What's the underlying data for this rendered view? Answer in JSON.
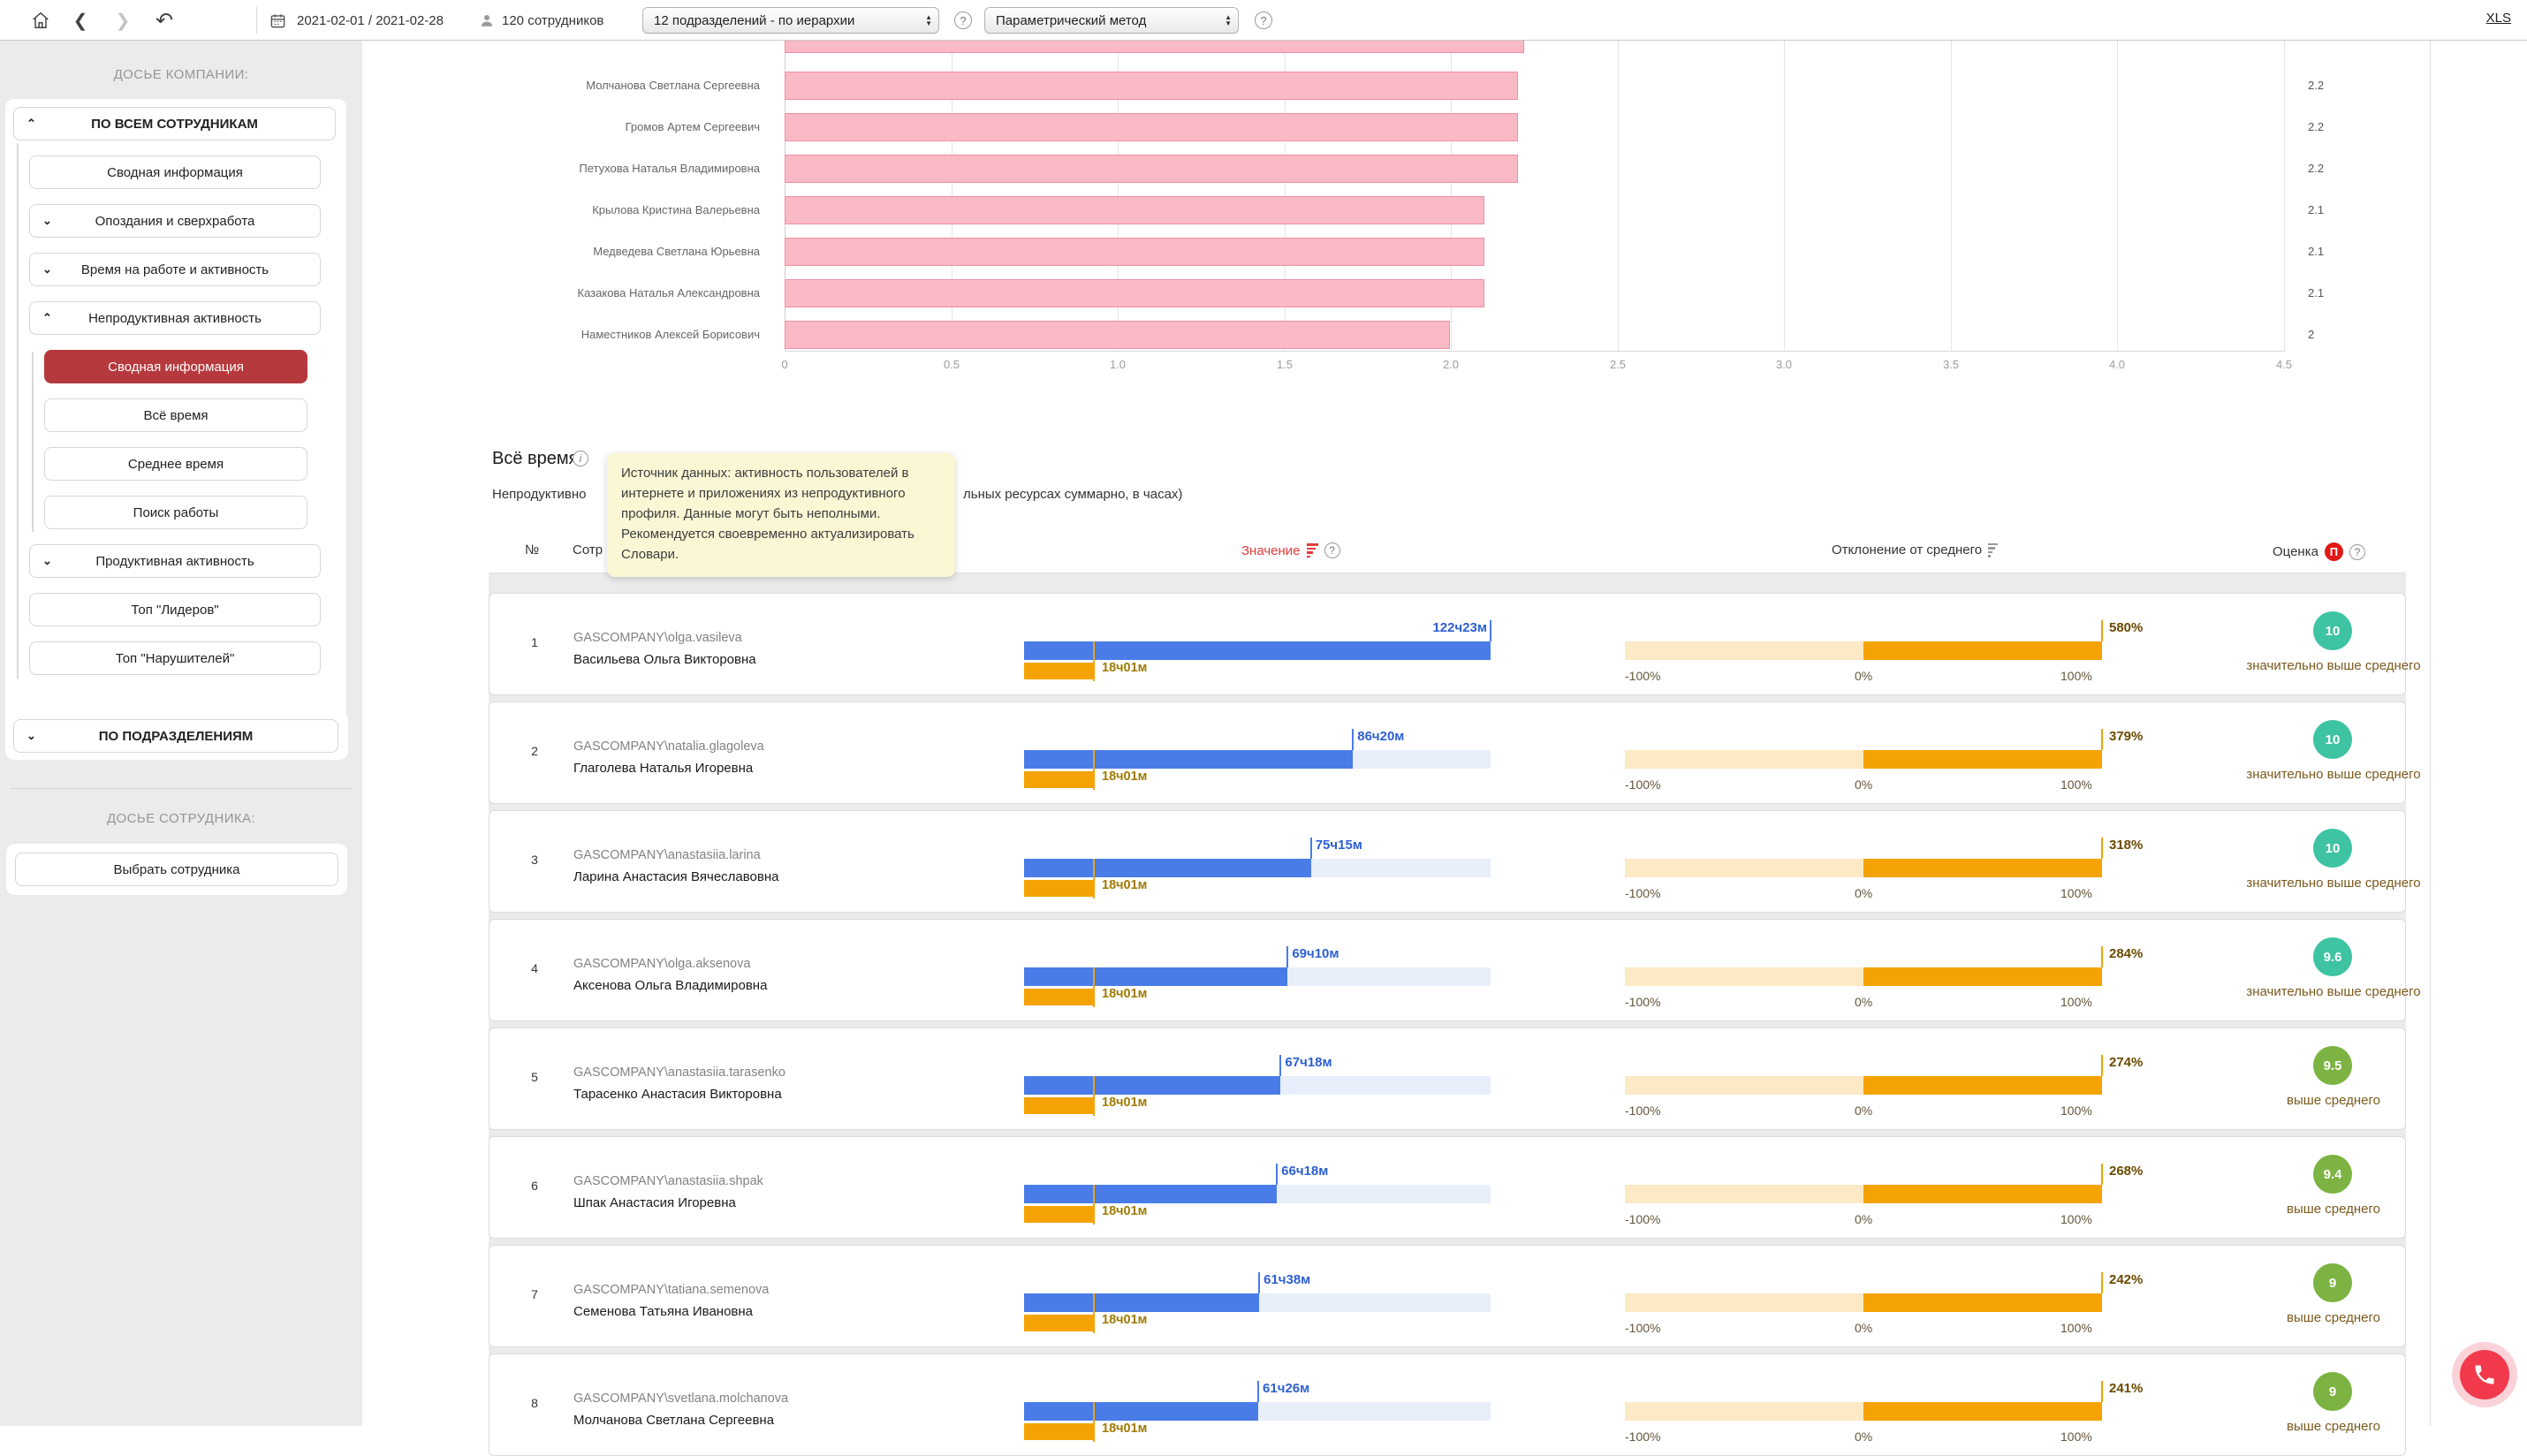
{
  "toolbar": {
    "date_range": "2021-02-01 / 2021-02-28",
    "employees_count": "120 сотрудников",
    "department_select": "12 подразделений - по иерархии",
    "method_select": "Параметрический метод",
    "xls_label": "XLS",
    "help_icon": "?"
  },
  "sidebar": {
    "company_header": "ДОСЬЕ КОМПАНИИ:",
    "employee_header": "ДОСЬЕ СОТРУДНИКА:",
    "by_departments_label": "ПО ПОДРАЗДЕЛЕНИЯМ",
    "select_employee_label": "Выбрать сотрудника",
    "items": [
      {
        "label": "ПО ВСЕМ СОТРУДНИКАМ",
        "chevron": "⌃"
      },
      {
        "label": "Сводная информация",
        "chevron": ""
      },
      {
        "label": "Опоздания и сверхработа",
        "chevron": "⌄"
      },
      {
        "label": "Время на работе и активность",
        "chevron": "⌄"
      },
      {
        "label": "Непродуктивная активность",
        "chevron": "⌃"
      },
      {
        "label": "Сводная информация",
        "chevron": ""
      },
      {
        "label": "Всё время",
        "chevron": ""
      },
      {
        "label": "Среднее время",
        "chevron": ""
      },
      {
        "label": "Поиск работы",
        "chevron": ""
      },
      {
        "label": "Продуктивная активность",
        "chevron": "⌄"
      },
      {
        "label": "Топ \"Лидеров\"",
        "chevron": ""
      },
      {
        "label": "Топ \"Нарушителей\"",
        "chevron": ""
      }
    ]
  },
  "chart_data": {
    "type": "bar",
    "orientation": "horizontal",
    "categories": [
      "Молчанова Светлана Сергеевна",
      "Громов Артем Сергеевич",
      "Петухова Наталья Владимировна",
      "Крылова Кристина Валерьевна",
      "Медведева Светлана Юрьевна",
      "Казакова Наталья Александровна",
      "Наместников Алексей Борисович"
    ],
    "values": [
      2.2,
      2.2,
      2.2,
      2.1,
      2.1,
      2.1,
      2
    ],
    "value_labels": [
      "2.2",
      "2.2",
      "2.2",
      "2.1",
      "2.1",
      "2.1",
      "2"
    ],
    "fracs": [
      0.489,
      0.489,
      0.489,
      0.467,
      0.467,
      0.467,
      0.444
    ],
    "partial_top_bar_frac": 0.493,
    "xlim": [
      0,
      4.5
    ],
    "ticks": [
      "0",
      "0.5",
      "1.0",
      "1.5",
      "2.0",
      "2.5",
      "3.0",
      "3.5",
      "4.0",
      "4.5"
    ],
    "bar_color": "#f9b9c5",
    "bar_border_color": "#ee8fa3",
    "grid": true,
    "legend": false
  },
  "section": {
    "title": "Всё время",
    "info_icon": "i",
    "subtitle_visible_left": "Непродуктивно",
    "subtitle_visible_right": "льных ресурсах суммарно, в часах)"
  },
  "tooltip": {
    "text": "Источник данных: активность пользователей в интернете и приложениях из непродуктивного профиля. Данные могут быть неполными. Рекомендуется своевременно актуализировать Словари."
  },
  "table": {
    "headers": {
      "num": "№",
      "employee": "Сотр",
      "value": "Значение",
      "deviation": "Отклонение от среднего",
      "score": "Оценка",
      "score_badge": "П",
      "help_icon": "?"
    },
    "deviation_axis": {
      "minus": "-100%",
      "zero": "0%",
      "plus": "100%"
    },
    "average": {
      "label": "18ч01м",
      "frac": 0.147
    },
    "rows": [
      {
        "num": "1",
        "login": "GASCOMPANY\\olga.vasileva",
        "name": "Васильева Ольга Викторовна",
        "value": "122ч23м",
        "frac": 1.0,
        "pct": "580%",
        "score": "10",
        "score_color": "#3ec3a3",
        "score_label": "значительно выше среднего"
      },
      {
        "num": "2",
        "login": "GASCOMPANY\\natalia.glagoleva",
        "name": "Глаголева Наталья Игоревна",
        "value": "86ч20м",
        "frac": 0.705,
        "pct": "379%",
        "score": "10",
        "score_color": "#3ec3a3",
        "score_label": "значительно выше среднего"
      },
      {
        "num": "3",
        "login": "GASCOMPANY\\anastasiia.larina",
        "name": "Ларина Анастасия Вячеславовна",
        "value": "75ч15м",
        "frac": 0.615,
        "pct": "318%",
        "score": "10",
        "score_color": "#3ec3a3",
        "score_label": "значительно выше среднего"
      },
      {
        "num": "4",
        "login": "GASCOMPANY\\olga.aksenova",
        "name": "Аксенова Ольга Владимировна",
        "value": "69ч10м",
        "frac": 0.565,
        "pct": "284%",
        "score": "9.6",
        "score_color": "#3ec3a3",
        "score_label": "значительно выше среднего"
      },
      {
        "num": "5",
        "login": "GASCOMPANY\\anastasiia.tarasenko",
        "name": "Тарасенко Анастасия Викторовна",
        "value": "67ч18м",
        "frac": 0.55,
        "pct": "274%",
        "score": "9.5",
        "score_color": "#7cb342",
        "score_label": "выше среднего"
      },
      {
        "num": "6",
        "login": "GASCOMPANY\\anastasiia.shpak",
        "name": "Шпак Анастасия Игоревна",
        "value": "66ч18м",
        "frac": 0.542,
        "pct": "268%",
        "score": "9.4",
        "score_color": "#7cb342",
        "score_label": "выше среднего"
      },
      {
        "num": "7",
        "login": "GASCOMPANY\\tatiana.semenova",
        "name": "Семенова Татьяна Ивановна",
        "value": "61ч38м",
        "frac": 0.504,
        "pct": "242%",
        "score": "9",
        "score_color": "#7cb342",
        "score_label": "выше среднего"
      },
      {
        "num": "8",
        "login": "GASCOMPANY\\svetlana.molchanova",
        "name": "Молчанова Светлана Сергеевна",
        "value": "61ч26м",
        "frac": 0.502,
        "pct": "241%",
        "score": "9",
        "score_color": "#7cb342",
        "score_label": "выше среднего"
      }
    ]
  }
}
